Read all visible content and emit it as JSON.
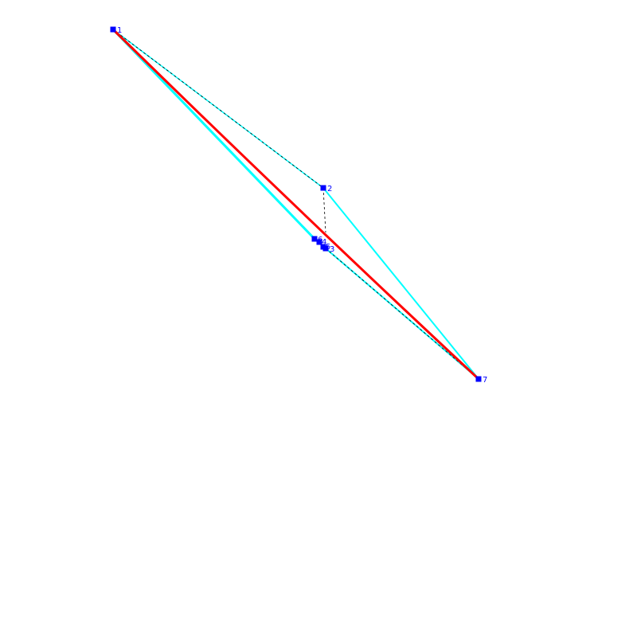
{
  "colors": {
    "background": "#ffffff",
    "curve": "#ff0000",
    "hull": "#00ffff",
    "points": "#0000ff",
    "dashed": "#000000"
  },
  "points": [
    {
      "label": "1"
    },
    {
      "label": "2"
    },
    {
      "label": "3"
    },
    {
      "label": "4"
    },
    {
      "label": "5"
    },
    {
      "label": "6"
    },
    {
      "label": "7"
    }
  ]
}
